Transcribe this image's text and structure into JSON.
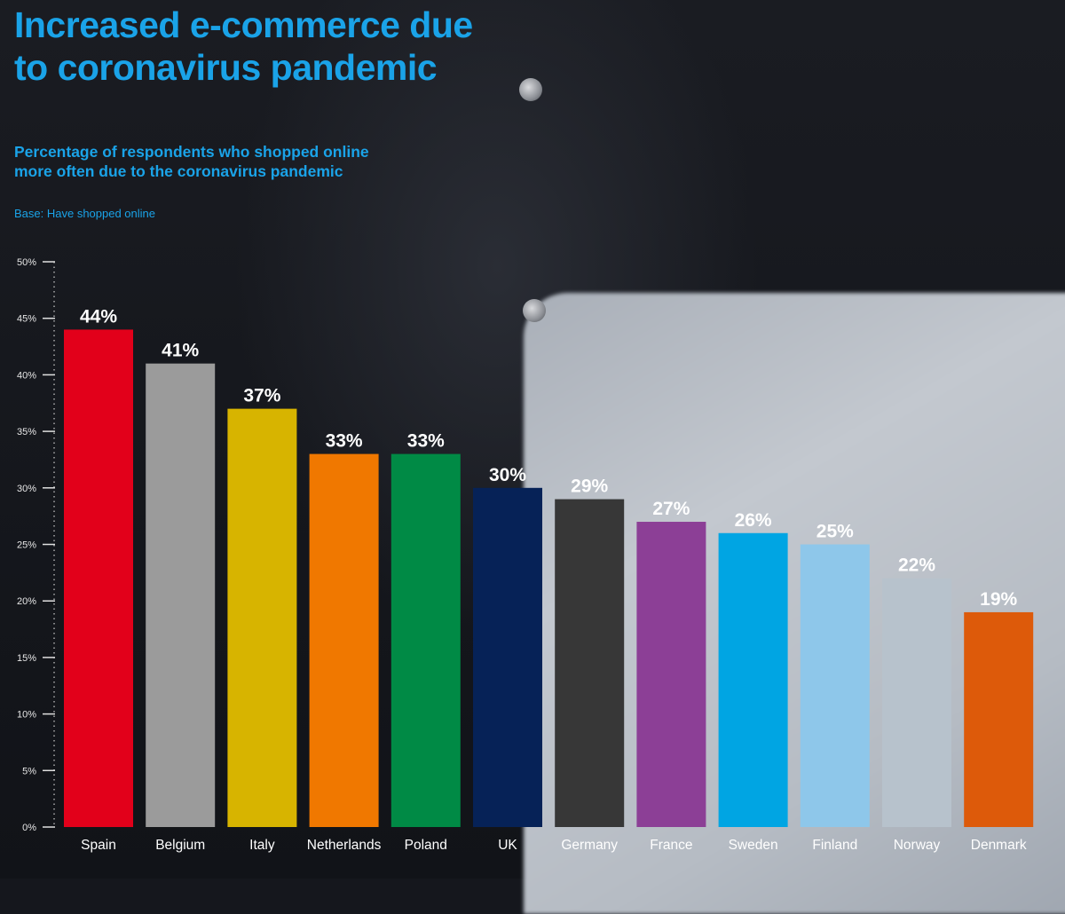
{
  "header": {
    "title": "Increased e-commerce due to coronavirus pandemic",
    "subtitle": "Percentage of respondents who shopped online more often due to the coronavirus pandemic",
    "base_note": "Base: Have shopped online"
  },
  "colors": {
    "accent": "#1aa3e8",
    "background": "#15171d"
  },
  "chart_data": {
    "type": "bar",
    "title": "Increased e-commerce due to coronavirus pandemic",
    "subtitle": "Percentage of respondents who shopped online more often due to the coronavirus pandemic",
    "categories": [
      "Spain",
      "Belgium",
      "Italy",
      "Netherlands",
      "Poland",
      "UK",
      "Germany",
      "France",
      "Sweden",
      "Finland",
      "Norway",
      "Denmark"
    ],
    "values": [
      44,
      41,
      37,
      33,
      33,
      30,
      29,
      27,
      26,
      25,
      22,
      19
    ],
    "value_labels": [
      "44%",
      "41%",
      "37%",
      "33%",
      "33%",
      "30%",
      "29%",
      "27%",
      "26%",
      "25%",
      "22%",
      "19%"
    ],
    "bar_colors": [
      "#e2001a",
      "#9b9b9b",
      "#d7b400",
      "#f07800",
      "#008a45",
      "#062257",
      "#373737",
      "#8c3f96",
      "#00a5e3",
      "#8ec7ea",
      "#b7c2cc",
      "#dd5a0a"
    ],
    "y_ticks": [
      "0%",
      "5%",
      "10%",
      "15%",
      "20%",
      "25%",
      "30%",
      "35%",
      "40%",
      "45%",
      "50%"
    ],
    "ylim": [
      0,
      50
    ],
    "xlabel": "",
    "ylabel": "",
    "grid": false,
    "legend": "none"
  }
}
